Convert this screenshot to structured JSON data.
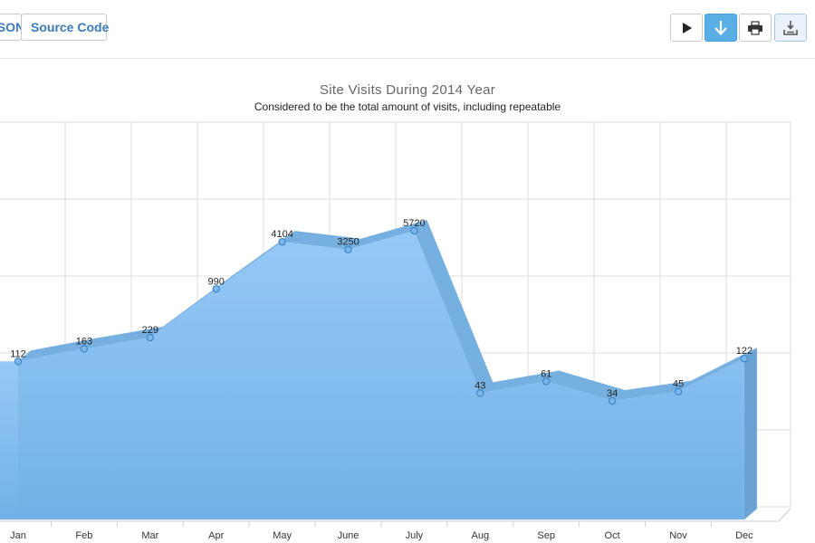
{
  "toolbar": {
    "tab_json_label": "JSON",
    "tab_source_label": "Source Code",
    "accent_color": "#5aaee6"
  },
  "chart_data": {
    "type": "area",
    "title": "Site Visits During 2014 Year",
    "subtitle": "Considered to be the total amount of visits, including repeatable",
    "scale": "log",
    "categories": [
      "Jan",
      "Feb",
      "Mar",
      "Apr",
      "May",
      "June",
      "July",
      "Aug",
      "Sep",
      "Oct",
      "Nov",
      "Dec"
    ],
    "values": [
      112,
      163,
      229,
      990,
      4104,
      3250,
      5720,
      43,
      61,
      34,
      45,
      122
    ],
    "xlabel": "",
    "ylabel": "",
    "grid": true,
    "fill_color": "#7ab8ec",
    "edge_color": "#6aa8dc",
    "point_color": "#4a90d9"
  }
}
